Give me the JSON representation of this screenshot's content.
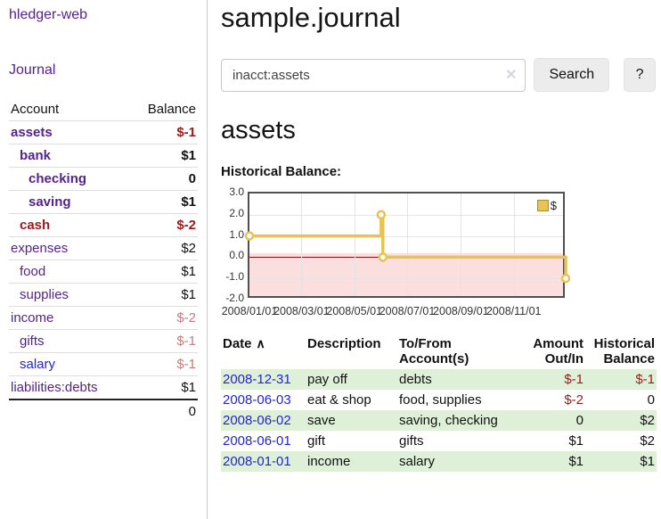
{
  "brand": {
    "label": "hledger-web"
  },
  "sidebar": {
    "journal_link": "Journal",
    "accounts": {
      "headers": {
        "account": "Account",
        "balance": "Balance"
      },
      "rows": [
        {
          "label": "assets",
          "value": "$-1",
          "indent": 1,
          "bold": true,
          "label_color": "purple",
          "value_color": "neg-strong"
        },
        {
          "label": "bank",
          "value": "$1",
          "indent": 2,
          "bold": true,
          "label_color": "purple",
          "value_color": "pos"
        },
        {
          "label": "checking",
          "value": "0",
          "indent": 3,
          "bold": true,
          "label_color": "purple",
          "value_color": "pos"
        },
        {
          "label": "saving",
          "value": "$1",
          "indent": 3,
          "bold": true,
          "label_color": "purple",
          "value_color": "pos"
        },
        {
          "label": "cash",
          "value": "$-2",
          "indent": 2,
          "bold": true,
          "label_color": "red",
          "value_color": "neg-strong"
        },
        {
          "label": "expenses",
          "value": "$2",
          "indent": 1,
          "bold": false,
          "label_color": "purple",
          "value_color": "pos"
        },
        {
          "label": "food",
          "value": "$1",
          "indent": 2,
          "bold": false,
          "label_color": "purple",
          "value_color": "pos"
        },
        {
          "label": "supplies",
          "value": "$1",
          "indent": 2,
          "bold": false,
          "label_color": "purple",
          "value_color": "pos"
        },
        {
          "label": "income",
          "value": "$-2",
          "indent": 1,
          "bold": false,
          "label_color": "purple",
          "value_color": "neg-soft"
        },
        {
          "label": "gifts",
          "value": "$-1",
          "indent": 2,
          "bold": false,
          "label_color": "purple",
          "value_color": "neg-soft"
        },
        {
          "label": "salary",
          "value": "$-1",
          "indent": 2,
          "bold": false,
          "label_color": "blue",
          "value_color": "neg-soft"
        },
        {
          "label": "liabilities:debts",
          "value": "$1",
          "indent": 1,
          "bold": false,
          "label_color": "purple",
          "value_color": "pos"
        }
      ],
      "total": "0"
    }
  },
  "main": {
    "title": "sample.journal",
    "search": {
      "value": "inacct:assets",
      "clear_icon": "✕",
      "button_label": "Search",
      "help_label": "?"
    },
    "account_heading": "assets",
    "chart_label": "Historical Balance:"
  },
  "chart_data": {
    "type": "line",
    "step": true,
    "title": "Historical Balance:",
    "x_range": [
      "2008-01-01",
      "2009-01-01"
    ],
    "ylim": [
      -2,
      3
    ],
    "yticks": [
      "3.0",
      "2.0",
      "1.0",
      "0.0",
      "-1.0",
      "-2.0"
    ],
    "ytick_values": [
      3,
      2,
      1,
      0,
      -1,
      -2
    ],
    "xticks": [
      {
        "label": "2008/01/01",
        "date": "2008-01-01"
      },
      {
        "label": "2008/03/01",
        "date": "2008-03-01"
      },
      {
        "label": "2008/05/01",
        "date": "2008-05-01"
      },
      {
        "label": "2008/07/01",
        "date": "2008-07-01"
      },
      {
        "label": "2008/09/01",
        "date": "2008-09-01"
      },
      {
        "label": "2008/11/01",
        "date": "2008-11-01"
      }
    ],
    "series": [
      {
        "name": "$",
        "color": "#e9c351",
        "points": [
          {
            "date": "2008-01-01",
            "value": 1
          },
          {
            "date": "2008-06-01",
            "value": 2
          },
          {
            "date": "2008-06-03",
            "value": 0
          },
          {
            "date": "2008-12-31",
            "value": -1
          }
        ]
      }
    ],
    "legend": {
      "position": "top-right",
      "label": "$"
    },
    "colors": {
      "negative_fill": "#fbdfdf",
      "zero_line": "#8f1010",
      "grid": "#e3e3e3"
    }
  },
  "table": {
    "headers": {
      "date": "Date",
      "sort_icon": "∧",
      "description": "Description",
      "accounts": "To/From Account(s)",
      "amount": "Amount Out/In",
      "balance": "Historical Balance"
    },
    "rows": [
      {
        "date": "2008-12-31",
        "description": "pay off",
        "accounts": "debts",
        "amount": "$-1",
        "amount_neg": true,
        "balance": "$-1",
        "balance_neg": true
      },
      {
        "date": "2008-06-03",
        "description": "eat & shop",
        "accounts": "food, supplies",
        "amount": "$-2",
        "amount_neg": true,
        "balance": "0",
        "balance_neg": false
      },
      {
        "date": "2008-06-02",
        "description": "save",
        "accounts": "saving, checking",
        "amount": "0",
        "amount_neg": false,
        "balance": "$2",
        "balance_neg": false
      },
      {
        "date": "2008-06-01",
        "description": "gift",
        "accounts": "gifts",
        "amount": "$1",
        "amount_neg": false,
        "balance": "$2",
        "balance_neg": false
      },
      {
        "date": "2008-01-01",
        "description": "income",
        "accounts": "salary",
        "amount": "$1",
        "amount_neg": false,
        "balance": "$1",
        "balance_neg": false
      }
    ]
  }
}
